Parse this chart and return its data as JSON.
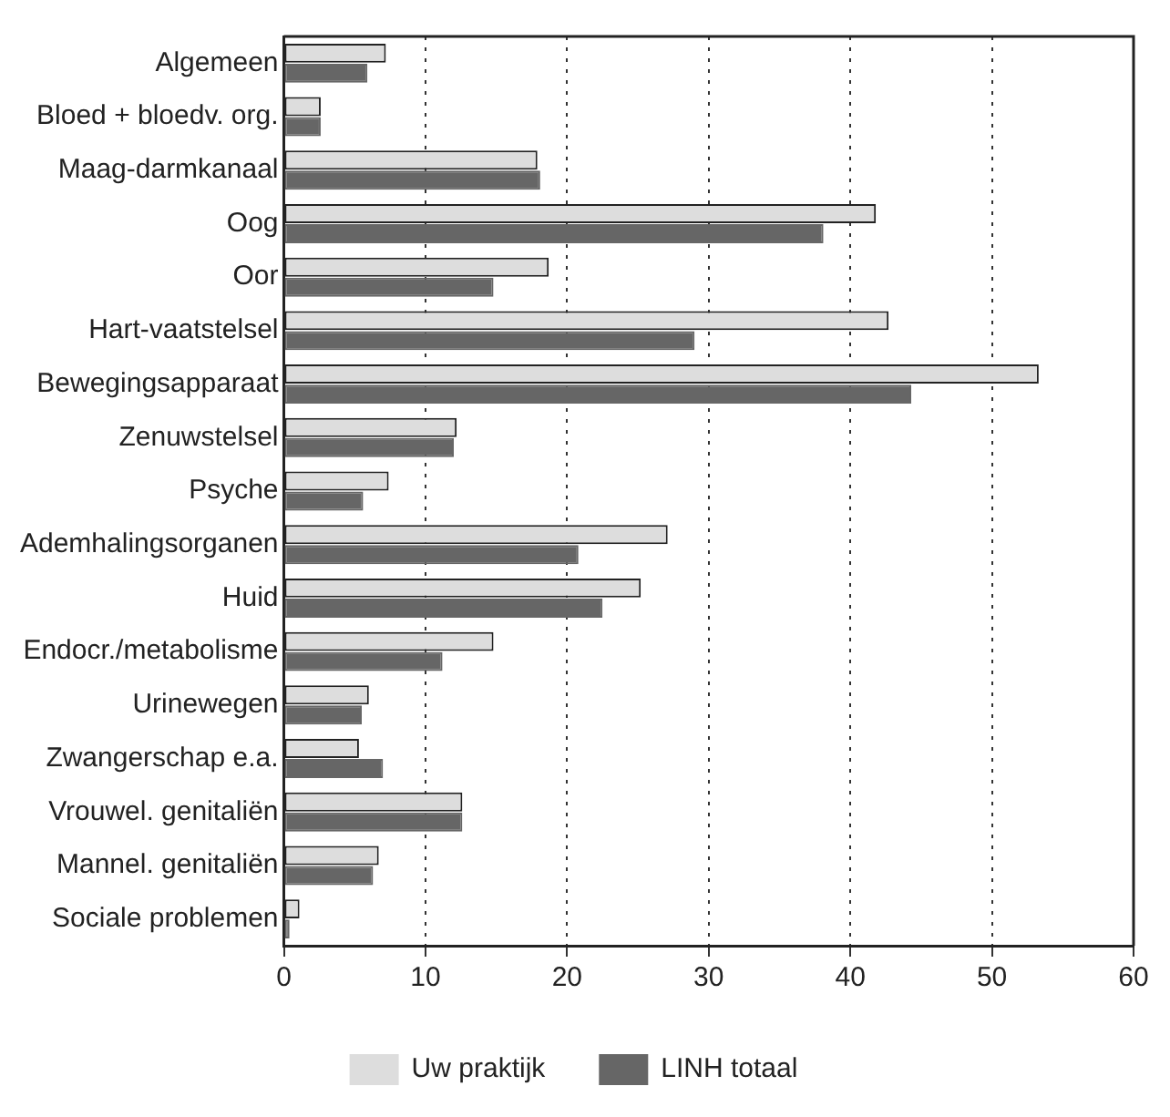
{
  "chart_data": {
    "type": "bar",
    "orientation": "horizontal",
    "categories": [
      "Algemeen",
      "Bloed + bloedv. org.",
      "Maag-darmkanaal",
      "Oog",
      "Oor",
      "Hart-vaatstelsel",
      "Bewegingsapparaat",
      "Zenuwstelsel",
      "Psyche",
      "Ademhalingsorganen",
      "Huid",
      "Endocr./metabolisme",
      "Urinewegen",
      "Zwangerschap e.a.",
      "Vrouwel. genitaliën",
      "Mannel. genitaliën",
      "Sociale problemen"
    ],
    "series": [
      {
        "name": "Uw praktijk",
        "color": "#dddddd",
        "values": [
          7.2,
          2.6,
          17.9,
          41.8,
          18.7,
          42.7,
          53.3,
          12.2,
          7.4,
          27.1,
          25.2,
          14.8,
          6.0,
          5.3,
          12.6,
          6.7,
          1.1
        ]
      },
      {
        "name": "LINH totaal",
        "color": "#666666",
        "values": [
          5.9,
          2.6,
          18.1,
          38.1,
          14.8,
          29.0,
          44.3,
          12.0,
          5.6,
          20.8,
          22.5,
          11.2,
          5.5,
          7.0,
          12.6,
          6.3,
          0.4
        ]
      }
    ],
    "xlim": [
      0,
      60
    ],
    "xticks": [
      0,
      10,
      20,
      30,
      40,
      50,
      60
    ],
    "grid": "x",
    "legend": "bottom"
  }
}
